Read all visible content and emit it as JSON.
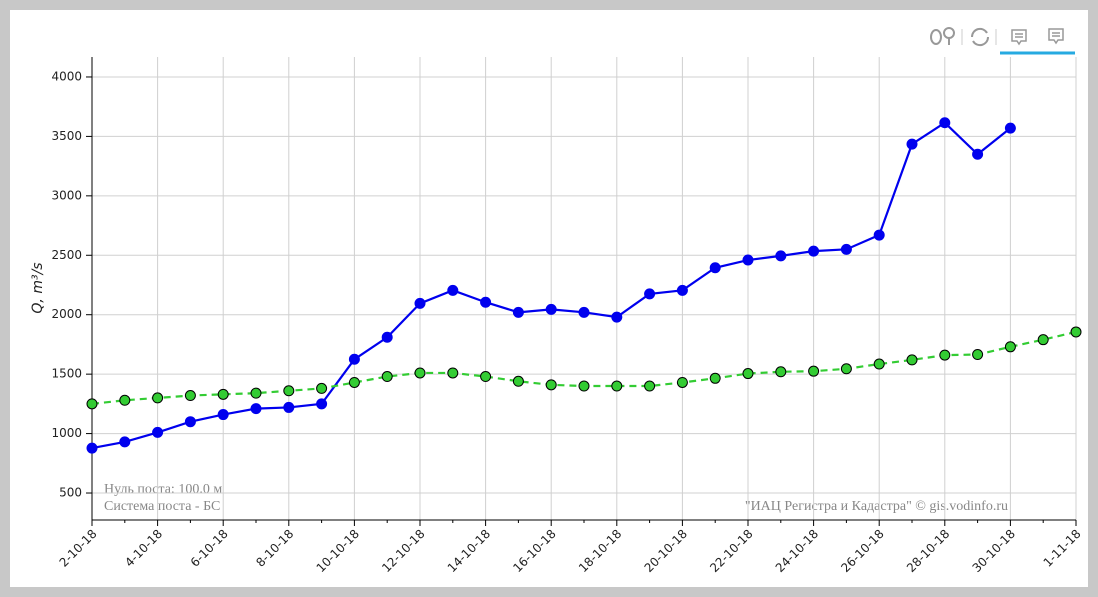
{
  "chart_data": {
    "type": "line",
    "y_label": "Q, m³/s",
    "annotations": [
      "Нуль поста: 100.0 м",
      "Система поста - БС",
      "\"ИАЦ Регистра и Кадастра\" © gis.vodinfo.ru"
    ],
    "categories": [
      "2-10-18",
      null,
      "4-10-18",
      null,
      "6-10-18",
      null,
      "8-10-18",
      null,
      "10-10-18",
      null,
      "12-10-18",
      null,
      "14-10-18",
      null,
      "16-10-18",
      null,
      "18-10-18",
      null,
      "20-10-18",
      null,
      "22-10-18",
      null,
      "24-10-18",
      null,
      "26-10-18",
      null,
      "28-10-18",
      null,
      "30-10-18",
      null,
      "1-11-18"
    ],
    "series": [
      {
        "color": "#0000ee",
        "dashed": false,
        "values": [
          878,
          930,
          1010,
          1100,
          1160,
          1210,
          1220,
          1250,
          1625,
          1810,
          2095,
          2205,
          2105,
          2020,
          2045,
          2020,
          1980,
          2175,
          2205,
          2395,
          2460,
          2495,
          2535,
          2550,
          2670,
          3435,
          3615,
          3350,
          3570,
          null,
          null
        ]
      },
      {
        "color": "#33cc33",
        "dashed": true,
        "values": [
          1250,
          1280,
          1300,
          1320,
          1330,
          1340,
          1360,
          1380,
          1430,
          1480,
          1510,
          1510,
          1480,
          1440,
          1410,
          1400,
          1400,
          1400,
          1430,
          1465,
          1505,
          1520,
          1525,
          1545,
          1585,
          1620,
          1660,
          1665,
          1730,
          1790,
          1855
        ]
      }
    ],
    "ylim": [
      273,
      4168
    ],
    "yticks": [
      500,
      1000,
      1500,
      2000,
      2500,
      3000,
      3500,
      4000
    ],
    "grid": true
  }
}
